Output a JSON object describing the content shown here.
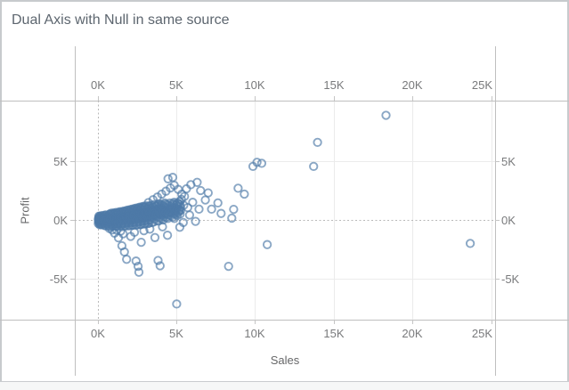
{
  "title": "Dual Axis with Null in same source",
  "chart_data": {
    "type": "scatter",
    "title": "Dual Axis with Null in same source",
    "xlabel": "Sales",
    "ylabel": "Profit",
    "x_ticks": [
      "0K",
      "5K",
      "10K",
      "15K",
      "20K",
      "25K"
    ],
    "y_ticks": [
      "5K",
      "0K",
      "-5K"
    ],
    "xlim": [
      -1.5,
      25.2
    ],
    "ylim": [
      -8.5,
      10.2
    ],
    "grid": "light gray at ticks, dotted zero lines",
    "legend": "none",
    "marker": "open-circle",
    "marker_color": "#4e79a7",
    "points": [
      [
        0.02,
        -0.3
      ],
      [
        0.05,
        -0.18
      ],
      [
        0.1,
        -0.08
      ],
      [
        0.02,
        0
      ],
      [
        0.08,
        0.08
      ],
      [
        0.05,
        0.18
      ],
      [
        0.1,
        0.3
      ],
      [
        0.07,
        -0.12
      ],
      [
        0.04,
        0.12
      ],
      [
        0.12,
        -0.25
      ],
      [
        0.09,
        0.02
      ],
      [
        0.13,
        0.22
      ],
      [
        0.11,
        -0.4
      ],
      [
        0.06,
        0.32
      ],
      [
        0.17,
        -0.38
      ],
      [
        0.19,
        -0.22
      ],
      [
        0.16,
        -0.06
      ],
      [
        0.18,
        0.09
      ],
      [
        0.2,
        0.22
      ],
      [
        0.17,
        0.34
      ],
      [
        0.21,
        -0.13
      ],
      [
        0.15,
        0.16
      ],
      [
        0.24,
        -0.42
      ],
      [
        0.3,
        -0.28
      ],
      [
        0.36,
        -0.14
      ],
      [
        0.26,
        0
      ],
      [
        0.32,
        0.14
      ],
      [
        0.37,
        0.26
      ],
      [
        0.28,
        0.38
      ],
      [
        0.33,
        -0.07
      ],
      [
        0.25,
        0.07
      ],
      [
        0.35,
        0.2
      ],
      [
        0.42,
        -0.46
      ],
      [
        0.44,
        -0.3
      ],
      [
        0.41,
        -0.12
      ],
      [
        0.43,
        0.05
      ],
      [
        0.45,
        0.2
      ],
      [
        0.42,
        0.34
      ],
      [
        0.46,
        0.42
      ],
      [
        0.4,
        -0.02
      ],
      [
        0.49,
        -0.5
      ],
      [
        0.55,
        -0.34
      ],
      [
        0.61,
        -0.18
      ],
      [
        0.52,
        -0.02
      ],
      [
        0.57,
        0.14
      ],
      [
        0.62,
        0.28
      ],
      [
        0.5,
        0.42
      ],
      [
        0.56,
        0.06
      ],
      [
        0.6,
        -0.1
      ],
      [
        0.53,
        0.2
      ],
      [
        0.68,
        -0.52
      ],
      [
        0.7,
        -0.34
      ],
      [
        0.67,
        -0.16
      ],
      [
        0.69,
        0.02
      ],
      [
        0.71,
        0.19
      ],
      [
        0.68,
        0.34
      ],
      [
        0.72,
        0.48
      ],
      [
        0.66,
        0.1
      ],
      [
        0.74,
        -0.55
      ],
      [
        0.8,
        -0.38
      ],
      [
        0.86,
        -0.2
      ],
      [
        0.77,
        -0.02
      ],
      [
        0.82,
        0.16
      ],
      [
        0.87,
        0.32
      ],
      [
        0.75,
        0.46
      ],
      [
        0.81,
        0.55
      ],
      [
        0.85,
        -0.12
      ],
      [
        0.78,
        0.08
      ],
      [
        0.93,
        -0.54
      ],
      [
        0.95,
        -0.36
      ],
      [
        0.92,
        -0.17
      ],
      [
        0.94,
        0.03
      ],
      [
        0.96,
        0.2
      ],
      [
        0.93,
        0.36
      ],
      [
        0.97,
        0.5
      ],
      [
        0.91,
        0.58
      ],
      [
        0.99,
        -0.52
      ],
      [
        1.05,
        -0.33
      ],
      [
        1.11,
        -0.14
      ],
      [
        1.02,
        0.05
      ],
      [
        1.07,
        0.22
      ],
      [
        1.12,
        0.4
      ],
      [
        1.0,
        0.52
      ],
      [
        1.06,
        0.6
      ],
      [
        1.1,
        -0.05
      ],
      [
        1.03,
        0.15
      ],
      [
        1.17,
        -0.53
      ],
      [
        1.19,
        -0.32
      ],
      [
        1.16,
        -0.12
      ],
      [
        1.18,
        0.08
      ],
      [
        1.2,
        0.26
      ],
      [
        1.17,
        0.44
      ],
      [
        1.21,
        0.56
      ],
      [
        1.15,
        0.63
      ],
      [
        1.24,
        -0.55
      ],
      [
        1.3,
        -0.35
      ],
      [
        1.36,
        -0.15
      ],
      [
        1.27,
        0.05
      ],
      [
        1.32,
        0.24
      ],
      [
        1.37,
        0.42
      ],
      [
        1.25,
        0.56
      ],
      [
        1.31,
        0.66
      ],
      [
        1.35,
        0.15
      ],
      [
        1.28,
        -0.25
      ],
      [
        1.43,
        -0.52
      ],
      [
        1.45,
        -0.31
      ],
      [
        1.42,
        -0.1
      ],
      [
        1.44,
        0.1
      ],
      [
        1.46,
        0.28
      ],
      [
        1.43,
        0.46
      ],
      [
        1.47,
        0.6
      ],
      [
        1.41,
        0.7
      ],
      [
        1.49,
        -0.5
      ],
      [
        1.55,
        -0.3
      ],
      [
        1.61,
        -0.08
      ],
      [
        1.52,
        0.12
      ],
      [
        1.57,
        0.3
      ],
      [
        1.62,
        0.48
      ],
      [
        1.5,
        0.63
      ],
      [
        1.56,
        0.72
      ],
      [
        1.6,
        0.02
      ],
      [
        1.53,
        0.22
      ],
      [
        1.68,
        -0.51
      ],
      [
        1.7,
        -0.28
      ],
      [
        1.67,
        -0.05
      ],
      [
        1.69,
        0.17
      ],
      [
        1.71,
        0.35
      ],
      [
        1.68,
        0.52
      ],
      [
        1.72,
        0.66
      ],
      [
        1.66,
        0.76
      ],
      [
        1.74,
        -0.52
      ],
      [
        1.8,
        -0.3
      ],
      [
        1.86,
        -0.08
      ],
      [
        1.77,
        0.14
      ],
      [
        1.82,
        0.34
      ],
      [
        1.87,
        0.54
      ],
      [
        1.75,
        0.7
      ],
      [
        1.81,
        0.8
      ],
      [
        1.85,
        -0.2
      ],
      [
        1.78,
        0.25
      ],
      [
        1.93,
        -0.5
      ],
      [
        1.95,
        -0.26
      ],
      [
        1.92,
        -0.03
      ],
      [
        1.94,
        0.19
      ],
      [
        1.96,
        0.39
      ],
      [
        1.93,
        0.58
      ],
      [
        1.97,
        0.73
      ],
      [
        1.91,
        0.84
      ],
      [
        1.99,
        -0.48
      ],
      [
        2.05,
        -0.25
      ],
      [
        2.11,
        -0.02
      ],
      [
        2.02,
        0.21
      ],
      [
        2.07,
        0.42
      ],
      [
        2.12,
        0.62
      ],
      [
        2.0,
        0.78
      ],
      [
        2.06,
        0.88
      ],
      [
        2.1,
        0.1
      ],
      [
        2.03,
        0.32
      ],
      [
        2.18,
        -0.46
      ],
      [
        2.2,
        -0.22
      ],
      [
        2.17,
        0.01
      ],
      [
        2.19,
        0.24
      ],
      [
        2.21,
        0.45
      ],
      [
        2.18,
        0.66
      ],
      [
        2.22,
        0.82
      ],
      [
        2.16,
        0.92
      ],
      [
        2.24,
        -0.45
      ],
      [
        2.3,
        -0.22
      ],
      [
        2.36,
        0.02
      ],
      [
        2.27,
        0.26
      ],
      [
        2.32,
        0.48
      ],
      [
        2.37,
        0.7
      ],
      [
        2.25,
        0.86
      ],
      [
        2.31,
        0.96
      ],
      [
        2.35,
        0.14
      ],
      [
        2.28,
        0.38
      ],
      [
        2.43,
        -0.43
      ],
      [
        2.45,
        -0.19
      ],
      [
        2.42,
        0.06
      ],
      [
        2.44,
        0.3
      ],
      [
        2.46,
        0.52
      ],
      [
        2.43,
        0.74
      ],
      [
        2.47,
        0.9
      ],
      [
        2.41,
        1.0
      ],
      [
        2.49,
        -0.42
      ],
      [
        2.55,
        -0.18
      ],
      [
        2.61,
        0.08
      ],
      [
        2.52,
        0.32
      ],
      [
        2.57,
        0.54
      ],
      [
        2.62,
        0.78
      ],
      [
        2.5,
        0.94
      ],
      [
        2.56,
        1.04
      ],
      [
        2.6,
        0.2
      ],
      [
        2.53,
        0.44
      ],
      [
        2.68,
        -0.4
      ],
      [
        2.7,
        -0.14
      ],
      [
        2.67,
        0.12
      ],
      [
        2.69,
        0.37
      ],
      [
        2.71,
        0.58
      ],
      [
        2.68,
        0.82
      ],
      [
        2.72,
        0.98
      ],
      [
        2.66,
        1.08
      ],
      [
        2.74,
        -0.38
      ],
      [
        2.8,
        -0.12
      ],
      [
        2.86,
        0.14
      ],
      [
        2.77,
        0.4
      ],
      [
        2.82,
        0.62
      ],
      [
        2.87,
        0.86
      ],
      [
        2.75,
        1.02
      ],
      [
        2.81,
        1.12
      ],
      [
        2.85,
        0.26
      ],
      [
        2.78,
        0.5
      ],
      [
        2.93,
        -0.35
      ],
      [
        2.95,
        -0.08
      ],
      [
        2.92,
        0.18
      ],
      [
        2.94,
        0.44
      ],
      [
        2.96,
        0.65
      ],
      [
        2.93,
        0.9
      ],
      [
        2.97,
        1.06
      ],
      [
        2.91,
        1.16
      ],
      [
        2.99,
        -0.32
      ],
      [
        3.05,
        -0.06
      ],
      [
        3.11,
        0.2
      ],
      [
        3.02,
        0.46
      ],
      [
        3.07,
        0.68
      ],
      [
        3.12,
        0.94
      ],
      [
        3.0,
        1.1
      ],
      [
        3.06,
        1.2
      ],
      [
        3.1,
        0.32
      ],
      [
        3.03,
        0.58
      ],
      [
        3.18,
        -0.3
      ],
      [
        3.2,
        -0.02
      ],
      [
        3.17,
        0.24
      ],
      [
        3.19,
        0.5
      ],
      [
        3.21,
        0.72
      ],
      [
        3.18,
        0.97
      ],
      [
        3.22,
        1.14
      ],
      [
        3.24,
        -0.28
      ],
      [
        3.3,
        0
      ],
      [
        3.36,
        0.26
      ],
      [
        3.27,
        0.52
      ],
      [
        3.32,
        0.76
      ],
      [
        3.37,
        1.0
      ],
      [
        3.25,
        1.2
      ],
      [
        3.35,
        0.4
      ],
      [
        3.28,
        0.65
      ],
      [
        3.44,
        -0.22
      ],
      [
        3.46,
        0.2
      ],
      [
        3.43,
        0.55
      ],
      [
        3.45,
        0.85
      ],
      [
        3.47,
        1.08
      ],
      [
        3.42,
        1.26
      ],
      [
        3.5,
        0.35
      ],
      [
        3.48,
        0.7
      ],
      [
        3.54,
        -0.18
      ],
      [
        3.6,
        0.1
      ],
      [
        3.66,
        0.38
      ],
      [
        3.57,
        0.66
      ],
      [
        3.62,
        0.92
      ],
      [
        3.67,
        1.18
      ],
      [
        3.65,
        0.5
      ],
      [
        3.59,
        1.3
      ],
      [
        3.55,
        0.8
      ],
      [
        3.74,
        -0.05
      ],
      [
        3.76,
        0.3
      ],
      [
        3.73,
        0.62
      ],
      [
        3.77,
        0.9
      ],
      [
        3.72,
        1.15
      ],
      [
        3.7,
        0.45
      ],
      [
        3.78,
        1.28
      ],
      [
        3.84,
        -0.1
      ],
      [
        3.9,
        0.18
      ],
      [
        3.96,
        0.46
      ],
      [
        3.87,
        0.74
      ],
      [
        3.92,
        1.0
      ],
      [
        3.97,
        1.25
      ],
      [
        3.95,
        0.6
      ],
      [
        3.88,
        1.38
      ],
      [
        3.85,
        0.9
      ],
      [
        3.93,
        1.12
      ],
      [
        4.04,
        0.1
      ],
      [
        4.06,
        0.42
      ],
      [
        4.03,
        0.72
      ],
      [
        4.07,
        1.0
      ],
      [
        4.05,
        1.3
      ],
      [
        4.0,
        0.55
      ],
      [
        4.08,
        0.85
      ],
      [
        4.14,
        0.0
      ],
      [
        4.2,
        0.28
      ],
      [
        4.26,
        0.56
      ],
      [
        4.17,
        0.84
      ],
      [
        4.22,
        1.1
      ],
      [
        4.27,
        1.35
      ],
      [
        4.24,
        1.45
      ],
      [
        4.2,
        0.45
      ],
      [
        4.15,
        1.2
      ],
      [
        4.34,
        0.2
      ],
      [
        4.36,
        0.5
      ],
      [
        4.33,
        0.78
      ],
      [
        4.37,
        1.05
      ],
      [
        4.3,
        0.65
      ],
      [
        4.4,
        1.3
      ],
      [
        4.44,
        0.12
      ],
      [
        4.5,
        0.4
      ],
      [
        4.56,
        0.68
      ],
      [
        4.47,
        0.95
      ],
      [
        4.52,
        1.2
      ],
      [
        4.57,
        1.44
      ],
      [
        4.45,
        0.55
      ],
      [
        4.64,
        0.35
      ],
      [
        4.66,
        0.62
      ],
      [
        4.63,
        0.9
      ],
      [
        4.67,
        1.18
      ],
      [
        4.6,
        0.75
      ],
      [
        4.7,
        1.0
      ],
      [
        4.74,
        0.24
      ],
      [
        4.8,
        0.52
      ],
      [
        4.86,
        0.8
      ],
      [
        4.77,
        1.06
      ],
      [
        4.82,
        1.3
      ],
      [
        4.85,
        1.5
      ],
      [
        4.75,
        1.4
      ],
      [
        4.94,
        0.48
      ],
      [
        4.96,
        0.75
      ],
      [
        4.93,
        1.02
      ],
      [
        4.97,
        1.28
      ],
      [
        4.9,
        0.62
      ],
      [
        5.0,
        0.9
      ],
      [
        5.04,
        0.38
      ],
      [
        5.1,
        0.64
      ],
      [
        5.16,
        0.9
      ],
      [
        5.07,
        1.16
      ],
      [
        5.12,
        1.38
      ],
      [
        5.18,
        1.55
      ],
      [
        5.05,
        1.45
      ],
      [
        5.22,
        0.5
      ],
      [
        5.25,
        0.8
      ],
      [
        5.24,
        1.08
      ],
      [
        5.21,
        1.3
      ],
      [
        5.15,
        0.75
      ],
      [
        4.85,
        0.12
      ],
      [
        3.2,
        1.48
      ],
      [
        3.5,
        1.72
      ],
      [
        3.78,
        1.95
      ],
      [
        4.05,
        2.2
      ],
      [
        4.32,
        2.45
      ],
      [
        4.6,
        2.72
      ],
      [
        4.85,
        2.95
      ],
      [
        5.1,
        2.6
      ],
      [
        5.32,
        2.2
      ],
      [
        5.3,
        1.75
      ],
      [
        5.7,
        1.05
      ],
      [
        4.45,
        3.5
      ],
      [
        4.75,
        3.62
      ],
      [
        5.45,
        1.25
      ],
      [
        5.5,
        2.0
      ],
      [
        5.62,
        2.65
      ],
      [
        5.9,
        3.0
      ],
      [
        6.3,
        3.2
      ],
      [
        6.52,
        2.5
      ],
      [
        6.02,
        1.5
      ],
      [
        6.42,
        0.92
      ],
      [
        6.82,
        1.7
      ],
      [
        5.82,
        0.42
      ],
      [
        7.0,
        2.3
      ],
      [
        7.22,
        0.92
      ],
      [
        7.62,
        1.45
      ],
      [
        7.82,
        0.55
      ],
      [
        8.5,
        0.15
      ],
      [
        8.62,
        0.9
      ],
      [
        8.9,
        2.7
      ],
      [
        9.3,
        2.2
      ],
      [
        0.72,
        -0.72
      ],
      [
        0.9,
        -0.85
      ],
      [
        1.18,
        -0.85
      ],
      [
        1.05,
        -1.12
      ],
      [
        1.45,
        -0.95
      ],
      [
        1.6,
        -1.18
      ],
      [
        1.3,
        -1.52
      ],
      [
        1.52,
        -2.2
      ],
      [
        1.68,
        -2.72
      ],
      [
        1.82,
        -3.35
      ],
      [
        2.08,
        -1.4
      ],
      [
        2.32,
        -1.05
      ],
      [
        2.42,
        -3.5
      ],
      [
        2.55,
        -3.95
      ],
      [
        2.6,
        -4.45
      ],
      [
        2.75,
        -1.9
      ],
      [
        2.92,
        -0.92
      ],
      [
        3.3,
        -0.78
      ],
      [
        3.62,
        -1.5
      ],
      [
        3.82,
        -3.45
      ],
      [
        3.95,
        -3.9
      ],
      [
        4.1,
        -0.58
      ],
      [
        4.42,
        -1.3
      ],
      [
        5.2,
        -0.62
      ],
      [
        5.42,
        -0.22
      ],
      [
        6.2,
        -0.12
      ],
      [
        5.0,
        -7.15
      ],
      [
        8.3,
        -3.95
      ],
      [
        10.75,
        -2.1
      ],
      [
        23.65,
        -2.0
      ],
      [
        9.85,
        4.55
      ],
      [
        10.1,
        4.9
      ],
      [
        10.4,
        4.82
      ],
      [
        13.7,
        4.55
      ],
      [
        13.95,
        6.6
      ],
      [
        18.3,
        8.9
      ]
    ]
  }
}
